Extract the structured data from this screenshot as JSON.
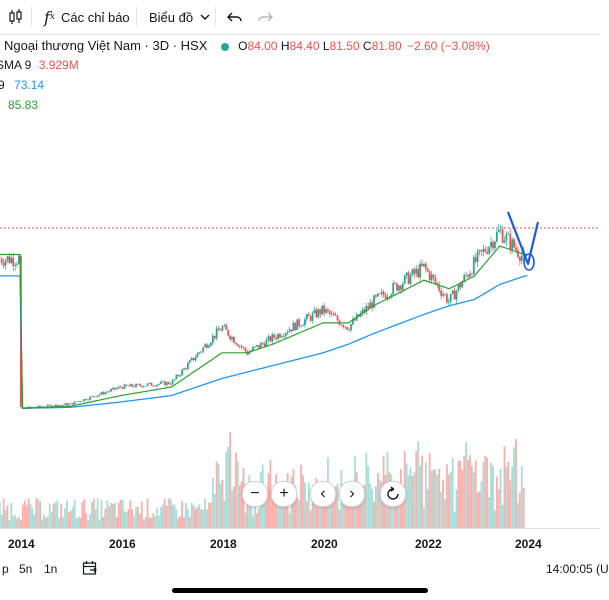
{
  "toolbar": {
    "indicators_label": "Các chỉ báo",
    "chart_type_label": "Biểu đồ"
  },
  "legend": {
    "symbol_title": "Ngoại thương Việt Nam · 3D · HSX",
    "ohlc": {
      "open_label": "O",
      "open": "84.00",
      "high_label": "H",
      "high": "84.40",
      "low_label": "L",
      "low": "81.50",
      "close_label": "C",
      "close": "81.80",
      "change": "−2.60 (−3.08%)"
    },
    "indicator_1": {
      "name": "SMA 9",
      "value": "3.929M"
    },
    "indicator_2": {
      "name": "9",
      "value": "73.14"
    },
    "indicator_3": {
      "name": "",
      "value": "85.83"
    }
  },
  "colors": {
    "up": "#26a69a",
    "down": "#ef5350",
    "ma_short": "#2e9f2e",
    "ma_long": "#2196f3",
    "drawing": "#1e5bd8",
    "volume_up": "#a8dcd6",
    "volume_down": "#f7b0ad",
    "status_dot": "#26a69a"
  },
  "chart_data": {
    "type": "line",
    "x": [
      "2014",
      "2015",
      "2016",
      "2017",
      "2018",
      "2018.5",
      "2019",
      "2020",
      "2020.5",
      "2021",
      "2022",
      "2022.5",
      "2023",
      "2023.5",
      "2024"
    ],
    "series": [
      {
        "values": [
          12,
          14,
          22,
          24,
          50,
          38,
          45,
          58,
          50,
          62,
          78,
          62,
          80,
          95,
          82
        ]
      },
      {
        "values": [
          12,
          13,
          18,
          22,
          38,
          38,
          42,
          52,
          52,
          60,
          72,
          68,
          74,
          88,
          84
        ]
      },
      {
        "values": [
          12,
          12.5,
          15,
          18,
          26,
          29,
          32,
          38,
          42,
          47,
          56,
          60,
          63,
          70,
          74
        ]
      }
    ],
    "current_price": 81.8,
    "ylim": [
      0,
      110
    ]
  },
  "xaxis": {
    "labels": [
      "2014",
      "2016",
      "2018",
      "2020",
      "2022",
      "2024"
    ]
  },
  "controls": {
    "zoom_out": "−",
    "zoom_in": "+",
    "prev": "‹",
    "next": "›"
  },
  "bottombar": {
    "ranges": [
      "p",
      "5n",
      "1n"
    ],
    "time": "14:00:05 (U"
  }
}
